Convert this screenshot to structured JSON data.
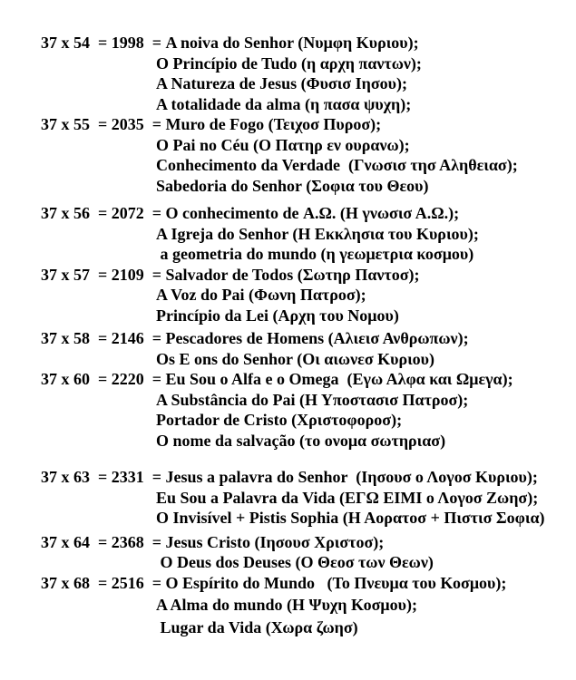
{
  "document": {
    "background_color": "#ffffff",
    "text_color": "#000000",
    "blocks": [
      {
        "equation": "37 x 54  = 1998  = ",
        "lines": [
          "A noiva do Senhor (Νυμφη Κυριου);",
          "O Princípio de Tudo (η αρχη παντων);",
          "A Natureza de Jesus (Φυσισ Ιησου);",
          "A totalidade da alma (η πασα ψυχη);"
        ]
      },
      {
        "equation": "37 x 55  = 2035  = ",
        "lines": [
          "Muro de Fogo (Τειχοσ Πυροσ);",
          "O Pai no Céu (Ο Πατηρ εν ουρανω);",
          "Conhecimento da Verdade  (Γνωσισ τησ Αληθειασ);",
          "Sabedoria do Senhor (Σοφια του Θεου)"
        ]
      },
      {
        "equation": "37 x 56  = 2072  = ",
        "lines": [
          "O conhecimento de Α.Ω. (Η γνωσισ Α.Ω.);",
          "A Igreja do Senhor (Η Εκκλησια του Κυριου);",
          " a geometria do mundo (η γεωμετρια κοσμου)"
        ]
      },
      {
        "equation": "37 x 57  = 2109  = ",
        "lines": [
          "Salvador de Todos (Σωτηρ Παντοσ);",
          "A Voz do Pai (Φωνη Πατροσ);",
          "Princípio da Lei (Αρχη του Νομου)"
        ]
      },
      {
        "equation": "37 x 58  = 2146  = ",
        "lines": [
          "Pescadores de Homens (Αλιεισ Ανθρωπων);",
          "Os E ons do Senhor (Οι αιωνεσ Κυριου)"
        ]
      },
      {
        "equation": "37 x 60  = 2220  = ",
        "lines": [
          "Eu Sou o Alfa e o Omega  (Εγω Αλφα και Ωμεγα);",
          "A Substância do Pai (Η Υποστασισ Πατροσ);",
          "Portador de Cristo (Χριστοφοροσ);",
          "O nome da salvação (το ονομα σωτηριασ)"
        ]
      },
      {
        "equation": "37 x 63  = 2331  = ",
        "lines": [
          "Jesus a palavra do Senhor  (Ιησουσ ο Λογοσ Κυριου);",
          "Eu Sou a Palavra da Vida (ΕΓΩ ΕΙΜΙ ο Λογοσ Ζωησ);",
          "O Invisível + Pistis Sophia (Η Αορατοσ + Πιστισ Σοφια)"
        ]
      },
      {
        "equation": "37 x 64  = 2368  = ",
        "lines": [
          "Jesus Cristo (Ιησουσ Χριστοσ);",
          " O Deus dos Deuses (Ο Θεοσ των Θεων)"
        ]
      },
      {
        "equation": "37 x 68  = 2516  = ",
        "lines": [
          "O Espírito do Mundo   (Το Πνευμα του Κοσμου);",
          "A Alma do mundo (Η Ψυχη Κοσμου);",
          " Lugar da Vida (Χωρα ζωησ)"
        ]
      }
    ]
  }
}
